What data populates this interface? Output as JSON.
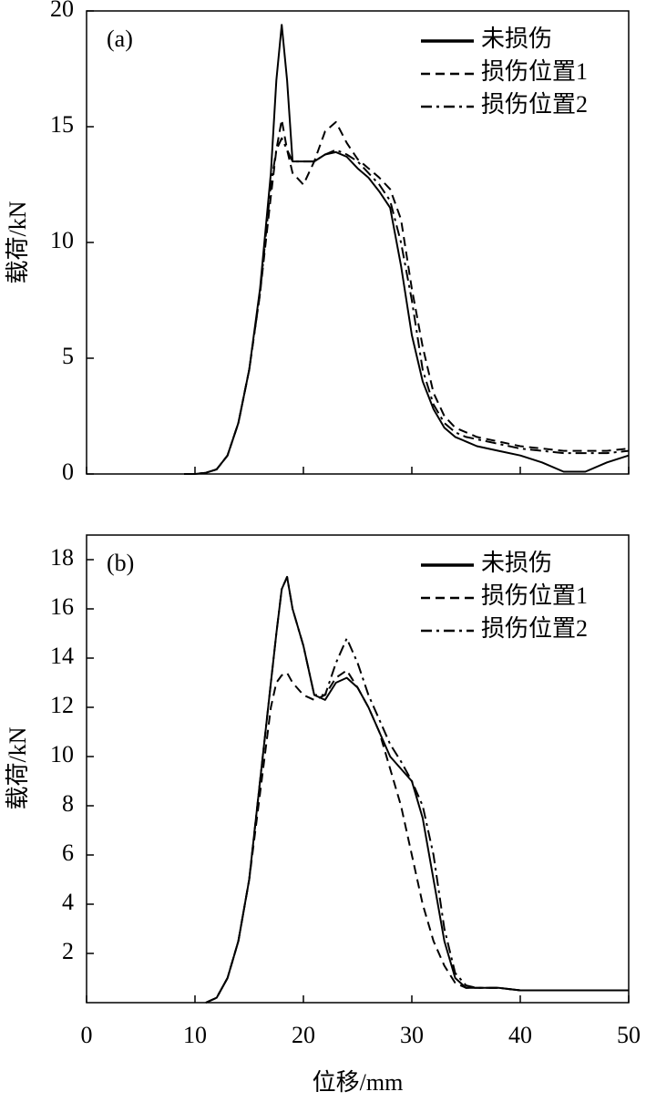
{
  "chart_data": [
    {
      "type": "line",
      "annotation": "(a)",
      "ylabel": "载荷/kN",
      "xlim": [
        0,
        50
      ],
      "xticks": [
        0,
        10,
        20,
        30,
        40,
        50
      ],
      "show_xtick_labels": false,
      "ylim": [
        0,
        20
      ],
      "yticks": [
        0,
        5,
        10,
        15,
        20
      ],
      "legend": "upper right",
      "x": [
        9,
        10,
        11,
        12,
        13,
        14,
        15,
        16,
        17,
        17.5,
        18,
        18.5,
        19,
        20,
        21,
        22,
        23,
        24,
        25,
        26,
        27,
        28,
        29,
        30,
        31,
        32,
        33,
        34,
        35,
        36,
        38,
        40,
        42,
        44,
        46,
        48,
        50
      ],
      "series": [
        {
          "name": "未损伤",
          "color": "#000000",
          "line_style": "solid",
          "values": [
            0,
            0,
            0.05,
            0.2,
            0.8,
            2.2,
            4.5,
            8,
            13,
            17,
            19.4,
            17,
            13.5,
            13.5,
            13.5,
            13.8,
            13.9,
            13.7,
            13.2,
            12.8,
            12.2,
            11.5,
            9,
            6,
            4,
            2.8,
            2,
            1.6,
            1.4,
            1.2,
            1.0,
            0.8,
            0.5,
            0.1,
            0.1,
            0.5,
            0.8
          ]
        },
        {
          "name": "损伤位置1",
          "color": "#000000",
          "line_style": "dashed",
          "values": [
            0,
            0,
            0.05,
            0.2,
            0.8,
            2.2,
            4.5,
            7.8,
            12,
            14,
            15.3,
            14,
            13,
            12.5,
            13.5,
            14.8,
            15.2,
            14.3,
            13.6,
            13.2,
            12.8,
            12.3,
            11,
            8,
            5.5,
            3.5,
            2.5,
            2,
            1.8,
            1.6,
            1.4,
            1.2,
            1.1,
            1,
            1,
            1,
            1.1
          ]
        },
        {
          "name": "损伤位置2",
          "color": "#000000",
          "line_style": "dashdot",
          "values": [
            0,
            0,
            0.05,
            0.2,
            0.8,
            2.2,
            4.5,
            7.8,
            12.5,
            14,
            14.5,
            14,
            13.5,
            13.5,
            13.5,
            13.8,
            14,
            13.8,
            13.5,
            13,
            12.5,
            11.8,
            10,
            7.5,
            4.5,
            3,
            2.2,
            1.8,
            1.6,
            1.5,
            1.3,
            1.1,
            1.0,
            0.9,
            0.9,
            0.9,
            1.0
          ]
        }
      ]
    },
    {
      "type": "line",
      "annotation": "(b)",
      "ylabel": "载荷/kN",
      "xlabel": "位移/mm",
      "xlim": [
        0,
        50
      ],
      "xticks": [
        0,
        10,
        20,
        30,
        40,
        50
      ],
      "show_xtick_labels": true,
      "ylim": [
        0,
        19
      ],
      "yticks": [
        2,
        4,
        6,
        8,
        10,
        12,
        14,
        16,
        18
      ],
      "legend": "upper right",
      "x": [
        11,
        12,
        13,
        14,
        15,
        16,
        17,
        17.5,
        18,
        18.5,
        19,
        20,
        21,
        22,
        23,
        24,
        25,
        26,
        27,
        28,
        29,
        30,
        31,
        32,
        33,
        34,
        35,
        36,
        38,
        40,
        42,
        44,
        46,
        48,
        50
      ],
      "series": [
        {
          "name": "未损伤",
          "color": "#000000",
          "line_style": "solid",
          "values": [
            0,
            0.2,
            1,
            2.5,
            5,
            9,
            13,
            15,
            16.8,
            17.3,
            16,
            14.5,
            12.5,
            12.3,
            13,
            13.2,
            12.8,
            12,
            11,
            10,
            9.5,
            9,
            7.5,
            5,
            2.5,
            1,
            0.6,
            0.6,
            0.6,
            0.5,
            0.5,
            0.5,
            0.5,
            0.5,
            0.5
          ]
        },
        {
          "name": "损伤位置1",
          "color": "#000000",
          "line_style": "dashed",
          "values": [
            0,
            0.2,
            1,
            2.5,
            5,
            8.5,
            12,
            13,
            13.3,
            13.4,
            13,
            12.5,
            12.3,
            12.5,
            13.2,
            13.5,
            12.8,
            12,
            11,
            9.5,
            8,
            6,
            4,
            2.5,
            1.5,
            0.8,
            0.6,
            0.6,
            0.6,
            0.5,
            0.5,
            0.5,
            0.5,
            0.5,
            0.5
          ]
        },
        {
          "name": "损伤位置2",
          "color": "#000000",
          "line_style": "dashdot",
          "values": [
            0,
            0.2,
            1,
            2.5,
            5,
            9,
            13,
            15,
            16.8,
            17.3,
            16,
            14.5,
            12.5,
            12.5,
            13.8,
            14.8,
            13.8,
            12.5,
            11.5,
            10.5,
            9.8,
            9,
            8,
            6,
            3,
            1.2,
            0.7,
            0.6,
            0.6,
            0.5,
            0.5,
            0.5,
            0.5,
            0.5,
            0.5
          ]
        }
      ]
    }
  ]
}
